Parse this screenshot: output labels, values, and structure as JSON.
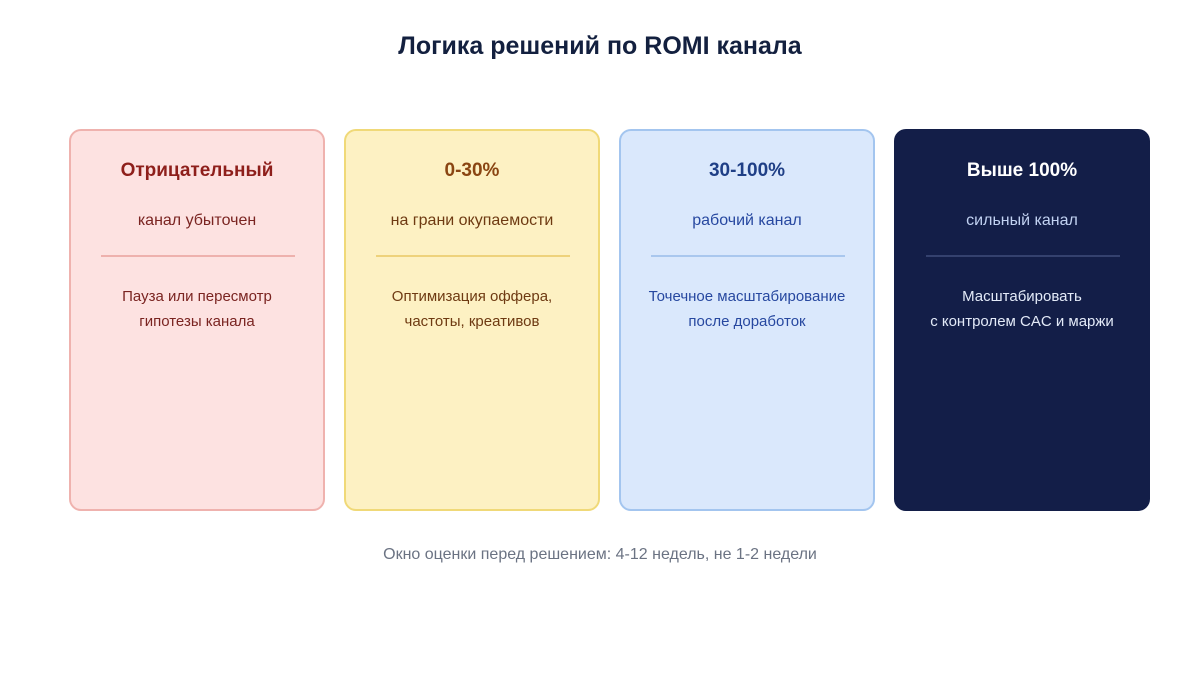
{
  "title": "Логика решений по ROMI канала",
  "cards": [
    {
      "title": "Отрицательный",
      "subtitle": "канал убыточен",
      "action_lines": [
        "Пауза или пересмотр",
        "гипотезы канала"
      ],
      "bg_color": "#fde2e1",
      "accent_color": "#8e1f1b"
    },
    {
      "title": "0-30%",
      "subtitle": "на грани окупаемости",
      "action_lines": [
        "Оптимизация оффера,",
        "частоты, креативов"
      ],
      "bg_color": "#fdf1c3",
      "accent_color": "#8a4512"
    },
    {
      "title": "30-100%",
      "subtitle": "рабочий канал",
      "action_lines": [
        "Точечное масштабирование",
        "после доработок"
      ],
      "bg_color": "#dae8fc",
      "accent_color": "#1f3f86"
    },
    {
      "title": "Выше 100%",
      "subtitle": "сильный канал",
      "action_lines": [
        "Масштабировать",
        "с контролем CAC и маржи"
      ],
      "bg_color": "#131e48",
      "accent_color": "#ffffff"
    }
  ],
  "footnote": "Окно оценки перед решением: 4-12 недель, не 1-2 недели"
}
